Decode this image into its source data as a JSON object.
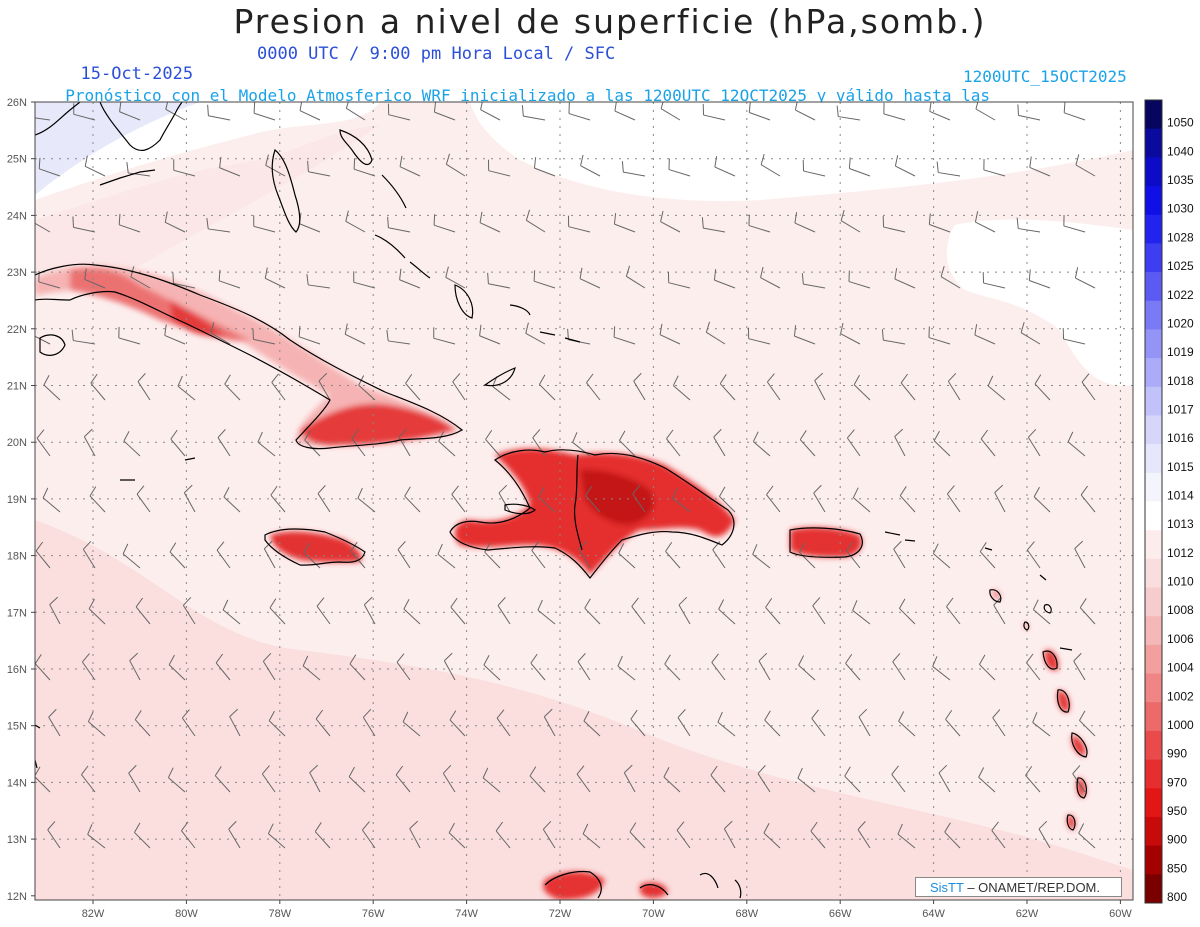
{
  "title": "Presion a nivel de superficie (hPa,somb.)",
  "subtitle": {
    "date": "15-Oct-2025",
    "time_info": "0000 UTC / 9:00 pm Hora Local / SFC",
    "forecast_info": "Pronóstico con el Modelo Atmosferico WRF inicializado a las 1200UTC_12OCT2025 y válido hasta las",
    "valid_until": "1200UTC_15OCT2025"
  },
  "map": {
    "lat_labels": [
      "26N",
      "25N",
      "24N",
      "23N",
      "22N",
      "21N",
      "20N",
      "19N",
      "18N",
      "17N",
      "16N",
      "15N",
      "14N",
      "13N",
      "12N"
    ],
    "lon_labels": [
      "82W",
      "80W",
      "78W",
      "76W",
      "74W",
      "72W",
      "70W",
      "68W",
      "66W",
      "64W",
      "62W",
      "60W"
    ],
    "colors": {
      "grid": "#888888",
      "coast": "#000000",
      "barb": "#555555",
      "background_low": "#fbe4e4",
      "background_mid": "#fdeeee"
    }
  },
  "colorbar": {
    "levels": [
      "1050",
      "1040",
      "1035",
      "1030",
      "1028",
      "1025",
      "1022",
      "1020",
      "1019",
      "1018",
      "1017",
      "1016",
      "1015",
      "1014",
      "1013",
      "1012",
      "1010",
      "1008",
      "1006",
      "1004",
      "1002",
      "1000",
      "990",
      "970",
      "950",
      "900",
      "850",
      "800"
    ],
    "colors": [
      "#06065e",
      "#0a0a9e",
      "#0c0cc8",
      "#0f0fe6",
      "#2323f0",
      "#3d3df2",
      "#5b5bf4",
      "#7a7af6",
      "#9494f7",
      "#ababf8",
      "#c2c2fa",
      "#d6d6fb",
      "#e6e6fc",
      "#f4f4fd",
      "#ffffff",
      "#fdecec",
      "#fadede",
      "#f7cccc",
      "#f5b8b8",
      "#f29f9f",
      "#ef8585",
      "#ec6a6a",
      "#e94b4b",
      "#e62e2e",
      "#e31616",
      "#c80a0a",
      "#a30000",
      "#7a0000"
    ]
  },
  "credit": {
    "logo": "SisTT",
    "text": " – ONAMET/REP.DOM."
  }
}
